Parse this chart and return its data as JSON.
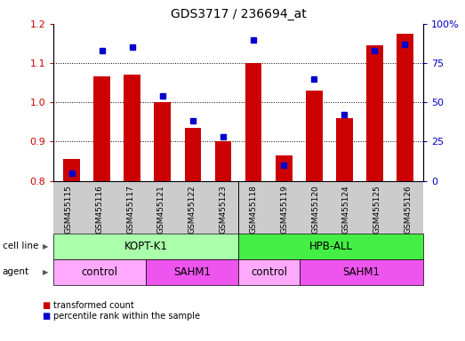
{
  "title": "GDS3717 / 236694_at",
  "samples": [
    "GSM455115",
    "GSM455116",
    "GSM455117",
    "GSM455121",
    "GSM455122",
    "GSM455123",
    "GSM455118",
    "GSM455119",
    "GSM455120",
    "GSM455124",
    "GSM455125",
    "GSM455126"
  ],
  "transformed_count": [
    0.855,
    1.065,
    1.07,
    1.0,
    0.935,
    0.9,
    1.1,
    0.865,
    1.03,
    0.96,
    1.145,
    1.175
  ],
  "percentile_rank": [
    5,
    83,
    85,
    54,
    38,
    28,
    90,
    10,
    65,
    42,
    83,
    87
  ],
  "ylim_left": [
    0.8,
    1.2
  ],
  "ylim_right": [
    0,
    100
  ],
  "yticks_left": [
    0.8,
    0.9,
    1.0,
    1.1,
    1.2
  ],
  "yticks_right": [
    0,
    25,
    50,
    75,
    100
  ],
  "bar_color": "#cc0000",
  "marker_color": "#0000cc",
  "cell_line_groups": [
    {
      "label": "KOPT-K1",
      "start": 0,
      "end": 6,
      "color": "#aaffaa"
    },
    {
      "label": "HPB-ALL",
      "start": 6,
      "end": 12,
      "color": "#44ee44"
    }
  ],
  "agent_groups": [
    {
      "label": "control",
      "start": 0,
      "end": 3,
      "color": "#ffaaff"
    },
    {
      "label": "SAHM1",
      "start": 3,
      "end": 6,
      "color": "#ee55ee"
    },
    {
      "label": "control",
      "start": 6,
      "end": 8,
      "color": "#ffaaff"
    },
    {
      "label": "SAHM1",
      "start": 8,
      "end": 12,
      "color": "#ee55ee"
    }
  ],
  "legend_red_label": "transformed count",
  "legend_blue_label": "percentile rank within the sample",
  "cell_line_label": "cell line",
  "agent_label": "agent",
  "background_color": "#ffffff",
  "plot_bg_color": "#ffffff",
  "xtick_bg_color": "#cccccc",
  "grid_color": "#000000",
  "ytick_left_color": "#cc0000",
  "ytick_right_color": "#0000cc"
}
